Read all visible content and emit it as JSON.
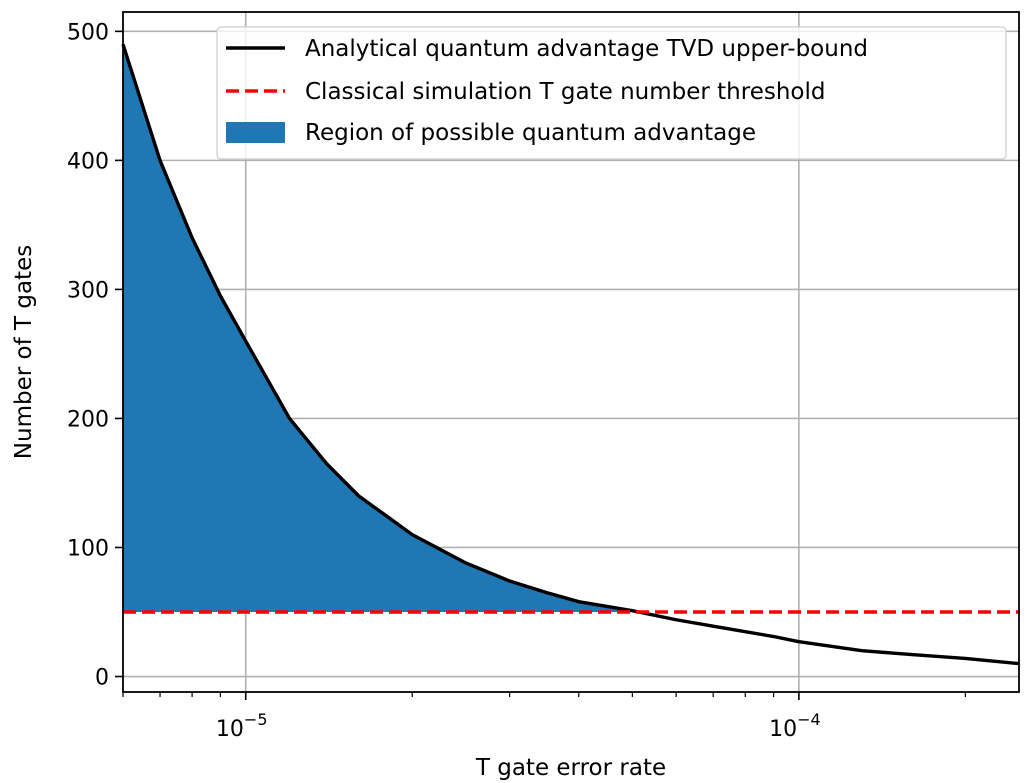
{
  "chart_data": {
    "type": "line",
    "title": "",
    "xlabel": "T gate error rate",
    "ylabel": "Number of T gates",
    "x_scale": "log",
    "xlim": [
      6e-06,
      0.00025
    ],
    "ylim": [
      -12,
      515
    ],
    "grid": true,
    "legend_position": "top-right",
    "x_ticks": [
      {
        "value": 1e-05,
        "base": "10",
        "exp": "−5"
      },
      {
        "value": 0.0001,
        "base": "10",
        "exp": "−4"
      }
    ],
    "y_ticks": [
      {
        "value": 0,
        "label": "0"
      },
      {
        "value": 100,
        "label": "100"
      },
      {
        "value": 200,
        "label": "200"
      },
      {
        "value": 300,
        "label": "300"
      },
      {
        "value": 400,
        "label": "400"
      },
      {
        "value": 500,
        "label": "500"
      }
    ],
    "series": [
      {
        "name": "Analytical quantum advantage TVD upper-bound",
        "style": "solid",
        "color": "#000000",
        "x": [
          6e-06,
          7e-06,
          8e-06,
          9e-06,
          1e-05,
          1.2e-05,
          1.4e-05,
          1.6e-05,
          2e-05,
          2.5e-05,
          3e-05,
          3.5e-05,
          4e-05,
          5e-05,
          6e-05,
          7e-05,
          9e-05,
          0.0001,
          0.00013,
          0.00016,
          0.0002,
          0.00025
        ],
        "y": [
          490,
          400,
          340,
          295,
          260,
          200,
          165,
          140,
          110,
          88,
          74,
          65,
          58,
          51,
          44,
          39,
          31,
          27,
          20,
          17,
          14,
          10
        ]
      },
      {
        "name": "Classical simulation T gate number threshold",
        "style": "dashed",
        "color": "#ff0000",
        "x": [
          6e-06,
          0.00025
        ],
        "y": [
          50,
          50
        ]
      }
    ],
    "fill": {
      "name": "Region of possible quantum advantage",
      "color": "#1f77b4",
      "between_series": "Analytical quantum advantage TVD upper-bound",
      "and_y": 50
    }
  }
}
